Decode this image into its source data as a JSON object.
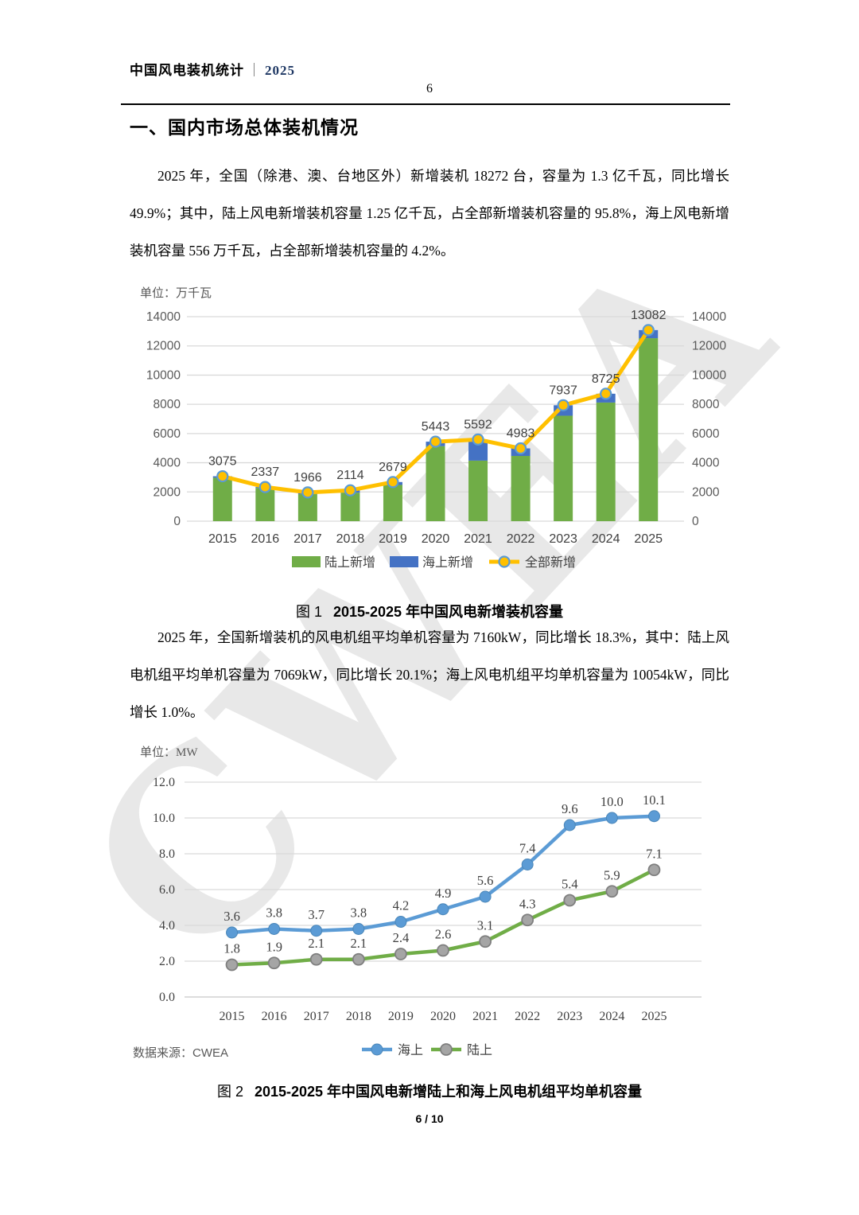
{
  "header": {
    "title": "中国风电装机统计",
    "separator": "｜",
    "year": "2025",
    "page_number": "6"
  },
  "section_title": "一、国内市场总体装机情况",
  "paragraphs": {
    "p1": "2025 年，全国（除港、澳、台地区外）新增装机 18272 台，容量为 1.3 亿千瓦，同比增长 49.9%；其中，陆上风电新增装机容量 1.25 亿千瓦，占全部新增装机容量的 95.8%，海上风电新增装机容量 556 万千瓦，占全部新增装机容量的 4.2%。",
    "p2": "2025 年，全国新增装机的风电机组平均单机容量为 7160kW，同比增长 18.3%，其中：陆上风电机组平均单机容量为 7069kW，同比增长 20.1%；海上风电机组平均单机容量为 10054kW，同比增长 1.0%。"
  },
  "figure1": {
    "label": "图 1",
    "title": "2015-2025 年中国风电新增装机容量"
  },
  "figure2": {
    "label": "图 2",
    "title": "2015-2025 年中国风电新增陆上和海上风电机组平均单机容量"
  },
  "source_note": {
    "prefix": "数据来源：",
    "org": "CWEA"
  },
  "footer": {
    "page_indicator": "6 / 10"
  },
  "watermark": "CWEA",
  "colors": {
    "onshore_bar": "#70AD47",
    "offshore_bar": "#4472C4",
    "total_line": "#FFC000",
    "total_marker_ring": "#5B9BD5",
    "offshore_line": "#5B9BD5",
    "onshore_line": "#70AD47",
    "onshore_marker_fill": "#A5A5A5",
    "onshore_marker_ring": "#7F7F7F",
    "gridline": "#D9D9D9",
    "header_year": "#1F3864"
  },
  "chart_data": [
    {
      "type": "bar",
      "name": "new-installed-capacity",
      "unit": "单位：万千瓦",
      "categories": [
        "2015",
        "2016",
        "2017",
        "2018",
        "2019",
        "2020",
        "2021",
        "2022",
        "2023",
        "2024",
        "2025"
      ],
      "series": [
        {
          "name": "陆上新增",
          "type": "bar",
          "color": "#70AD47",
          "values": [
            2975,
            2278,
            1850,
            1949,
            2481,
            5137,
            4144,
            4467,
            7219,
            8121,
            12526
          ]
        },
        {
          "name": "海上新增",
          "type": "bar",
          "color": "#4472C4",
          "values": [
            100,
            59,
            116,
            165,
            198,
            306,
            1448,
            516,
            718,
            604,
            556
          ]
        },
        {
          "name": "全部新增",
          "type": "line",
          "color": "#FFC000",
          "values": [
            3075,
            2337,
            1966,
            2114,
            2679,
            5443,
            5592,
            4983,
            7937,
            8725,
            13082
          ],
          "labels": [
            "3075",
            "2337",
            "1966",
            "2114",
            "2679",
            "5443",
            "5592",
            "4983",
            "7937",
            "8725",
            "13082"
          ]
        }
      ],
      "ylim": [
        0,
        14000
      ],
      "ytick_step": 2000,
      "grid": true,
      "dual_axis": true,
      "legend_position": "bottom"
    },
    {
      "type": "line",
      "name": "average-turbine-capacity",
      "unit": "单位：MW",
      "categories": [
        "2015",
        "2016",
        "2017",
        "2018",
        "2019",
        "2020",
        "2021",
        "2022",
        "2023",
        "2024",
        "2025"
      ],
      "series": [
        {
          "name": "海上",
          "color": "#5B9BD5",
          "values": [
            3.6,
            3.8,
            3.7,
            3.8,
            4.2,
            4.9,
            5.6,
            7.4,
            9.6,
            10.0,
            10.1
          ],
          "labels": [
            "3.6",
            "3.8",
            "3.7",
            "3.8",
            "4.2",
            "4.9",
            "5.6",
            "7.4",
            "9.6",
            "10.0",
            "10.1"
          ]
        },
        {
          "name": "陆上",
          "color": "#70AD47",
          "values": [
            1.8,
            1.9,
            2.1,
            2.1,
            2.4,
            2.6,
            3.1,
            4.3,
            5.4,
            5.9,
            7.1
          ],
          "labels": [
            "1.8",
            "1.9",
            "2.1",
            "2.1",
            "2.4",
            "2.6",
            "3.1",
            "4.3",
            "5.4",
            "5.9",
            "7.1"
          ]
        }
      ],
      "ylim": [
        0,
        12
      ],
      "ytick_step": 2,
      "tick_decimals": 1,
      "grid": true,
      "legend_position": "bottom"
    }
  ]
}
